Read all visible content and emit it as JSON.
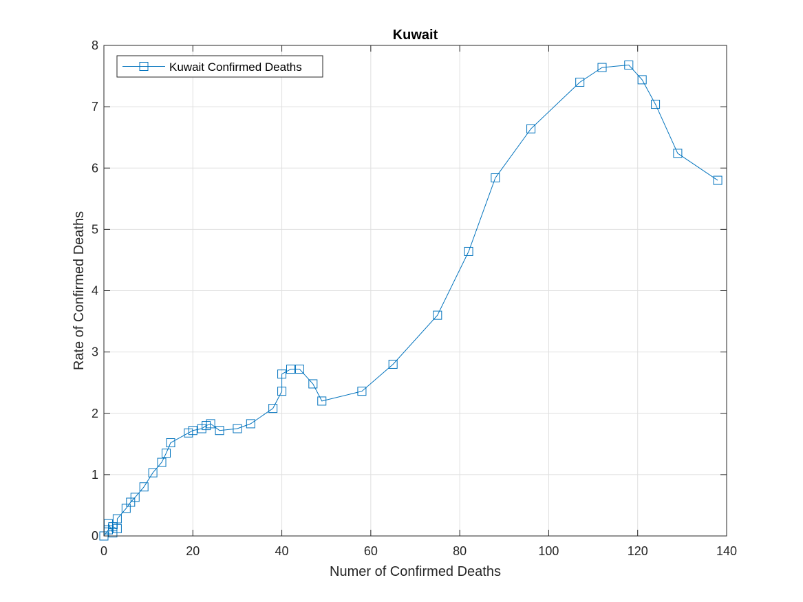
{
  "chart_data": {
    "type": "line",
    "title": "Kuwait",
    "xlabel": "Numer of Confirmed Deaths",
    "ylabel": "Rate of Confirmed Deaths",
    "xlim": [
      0,
      140
    ],
    "ylim": [
      0,
      8
    ],
    "xticks": [
      0,
      20,
      40,
      60,
      80,
      100,
      120,
      140
    ],
    "yticks": [
      0,
      1,
      2,
      3,
      4,
      5,
      6,
      7,
      8
    ],
    "grid": true,
    "legend_position": "top-left",
    "series": [
      {
        "name": "Kuwait Confirmed Deaths",
        "color": "#0072BD",
        "marker": "square",
        "x": [
          0,
          1,
          1,
          2,
          2,
          3,
          3,
          5,
          6,
          7,
          9,
          11,
          13,
          14,
          15,
          19,
          20,
          22,
          23,
          24,
          26,
          30,
          33,
          38,
          40,
          40,
          42,
          44,
          47,
          49,
          58,
          65,
          75,
          82,
          88,
          96,
          107,
          112,
          118,
          121,
          124,
          129,
          138
        ],
        "y": [
          0,
          0.1,
          0.2,
          0.05,
          0.15,
          0.12,
          0.28,
          0.45,
          0.55,
          0.63,
          0.8,
          1.03,
          1.2,
          1.35,
          1.52,
          1.68,
          1.72,
          1.75,
          1.8,
          1.83,
          1.72,
          1.75,
          1.83,
          2.08,
          2.36,
          2.64,
          2.72,
          2.72,
          2.48,
          2.2,
          2.36,
          2.8,
          3.6,
          4.64,
          5.84,
          6.64,
          7.4,
          7.64,
          7.68,
          7.44,
          7.04,
          6.24,
          5.8
        ]
      }
    ]
  }
}
